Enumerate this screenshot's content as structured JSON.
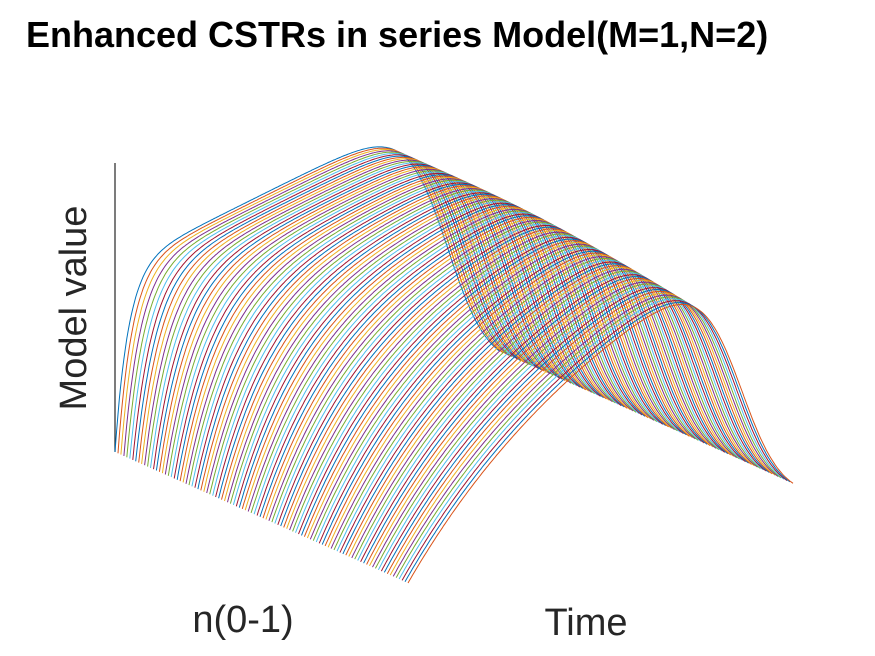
{
  "chart_data": {
    "type": "line",
    "title": "Enhanced CSTRs in series Model(M=1,N=2)",
    "xlabel": "n(0-1)",
    "ylabel": "Model value",
    "zlabel": "Time",
    "view": "3d-waterfall",
    "grid": false,
    "legend": "none",
    "n_range": [
      0,
      1
    ],
    "series_count": 100,
    "series_colors": [
      "#0072BD",
      "#D95319",
      "#EDB120",
      "#7E2F8E",
      "#77AC30",
      "#4DBEEE",
      "#A2142F"
    ]
  }
}
